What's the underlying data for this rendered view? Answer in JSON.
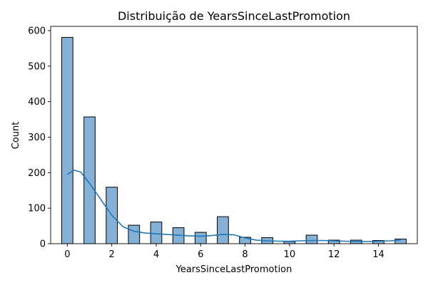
{
  "chart_data": {
    "type": "bar",
    "title": "Distribuição de YearsSinceLastPromotion",
    "xlabel": "YearsSinceLastPromotion",
    "ylabel": "Count",
    "xlim": [
      -0.75,
      15.75
    ],
    "ylim": [
      0,
      612
    ],
    "xticks": [
      0,
      2,
      4,
      6,
      8,
      10,
      12,
      14
    ],
    "yticks": [
      0,
      100,
      200,
      300,
      400,
      500,
      600
    ],
    "grid": false,
    "bins": [
      {
        "x": 0,
        "count": 581
      },
      {
        "x": 1,
        "count": 357
      },
      {
        "x": 2,
        "count": 159
      },
      {
        "x": 3,
        "count": 52
      },
      {
        "x": 4,
        "count": 61
      },
      {
        "x": 5,
        "count": 45
      },
      {
        "x": 6,
        "count": 32
      },
      {
        "x": 7,
        "count": 76
      },
      {
        "x": 8,
        "count": 18
      },
      {
        "x": 9,
        "count": 17
      },
      {
        "x": 10,
        "count": 6
      },
      {
        "x": 11,
        "count": 24
      },
      {
        "x": 12,
        "count": 10
      },
      {
        "x": 13,
        "count": 10
      },
      {
        "x": 14,
        "count": 9
      },
      {
        "x": 15,
        "count": 13
      }
    ],
    "kde": {
      "x": [
        0,
        0.3,
        0.6,
        1,
        1.5,
        2,
        2.5,
        3,
        3.5,
        4,
        4.5,
        5,
        5.5,
        6,
        6.5,
        7,
        7.5,
        8,
        8.5,
        9,
        9.5,
        10,
        10.5,
        11,
        11.5,
        12,
        12.5,
        13,
        13.5,
        14,
        14.5,
        15
      ],
      "y": [
        195,
        207,
        202,
        170,
        125,
        80,
        48,
        35,
        30,
        28,
        26,
        24,
        22,
        21,
        23,
        26,
        25,
        16,
        10,
        8,
        7,
        7,
        8,
        9,
        9,
        8,
        7,
        6,
        6,
        7,
        8,
        10
      ]
    },
    "colors": {
      "bar": "#86b1d6",
      "line": "#1f77b4"
    }
  }
}
